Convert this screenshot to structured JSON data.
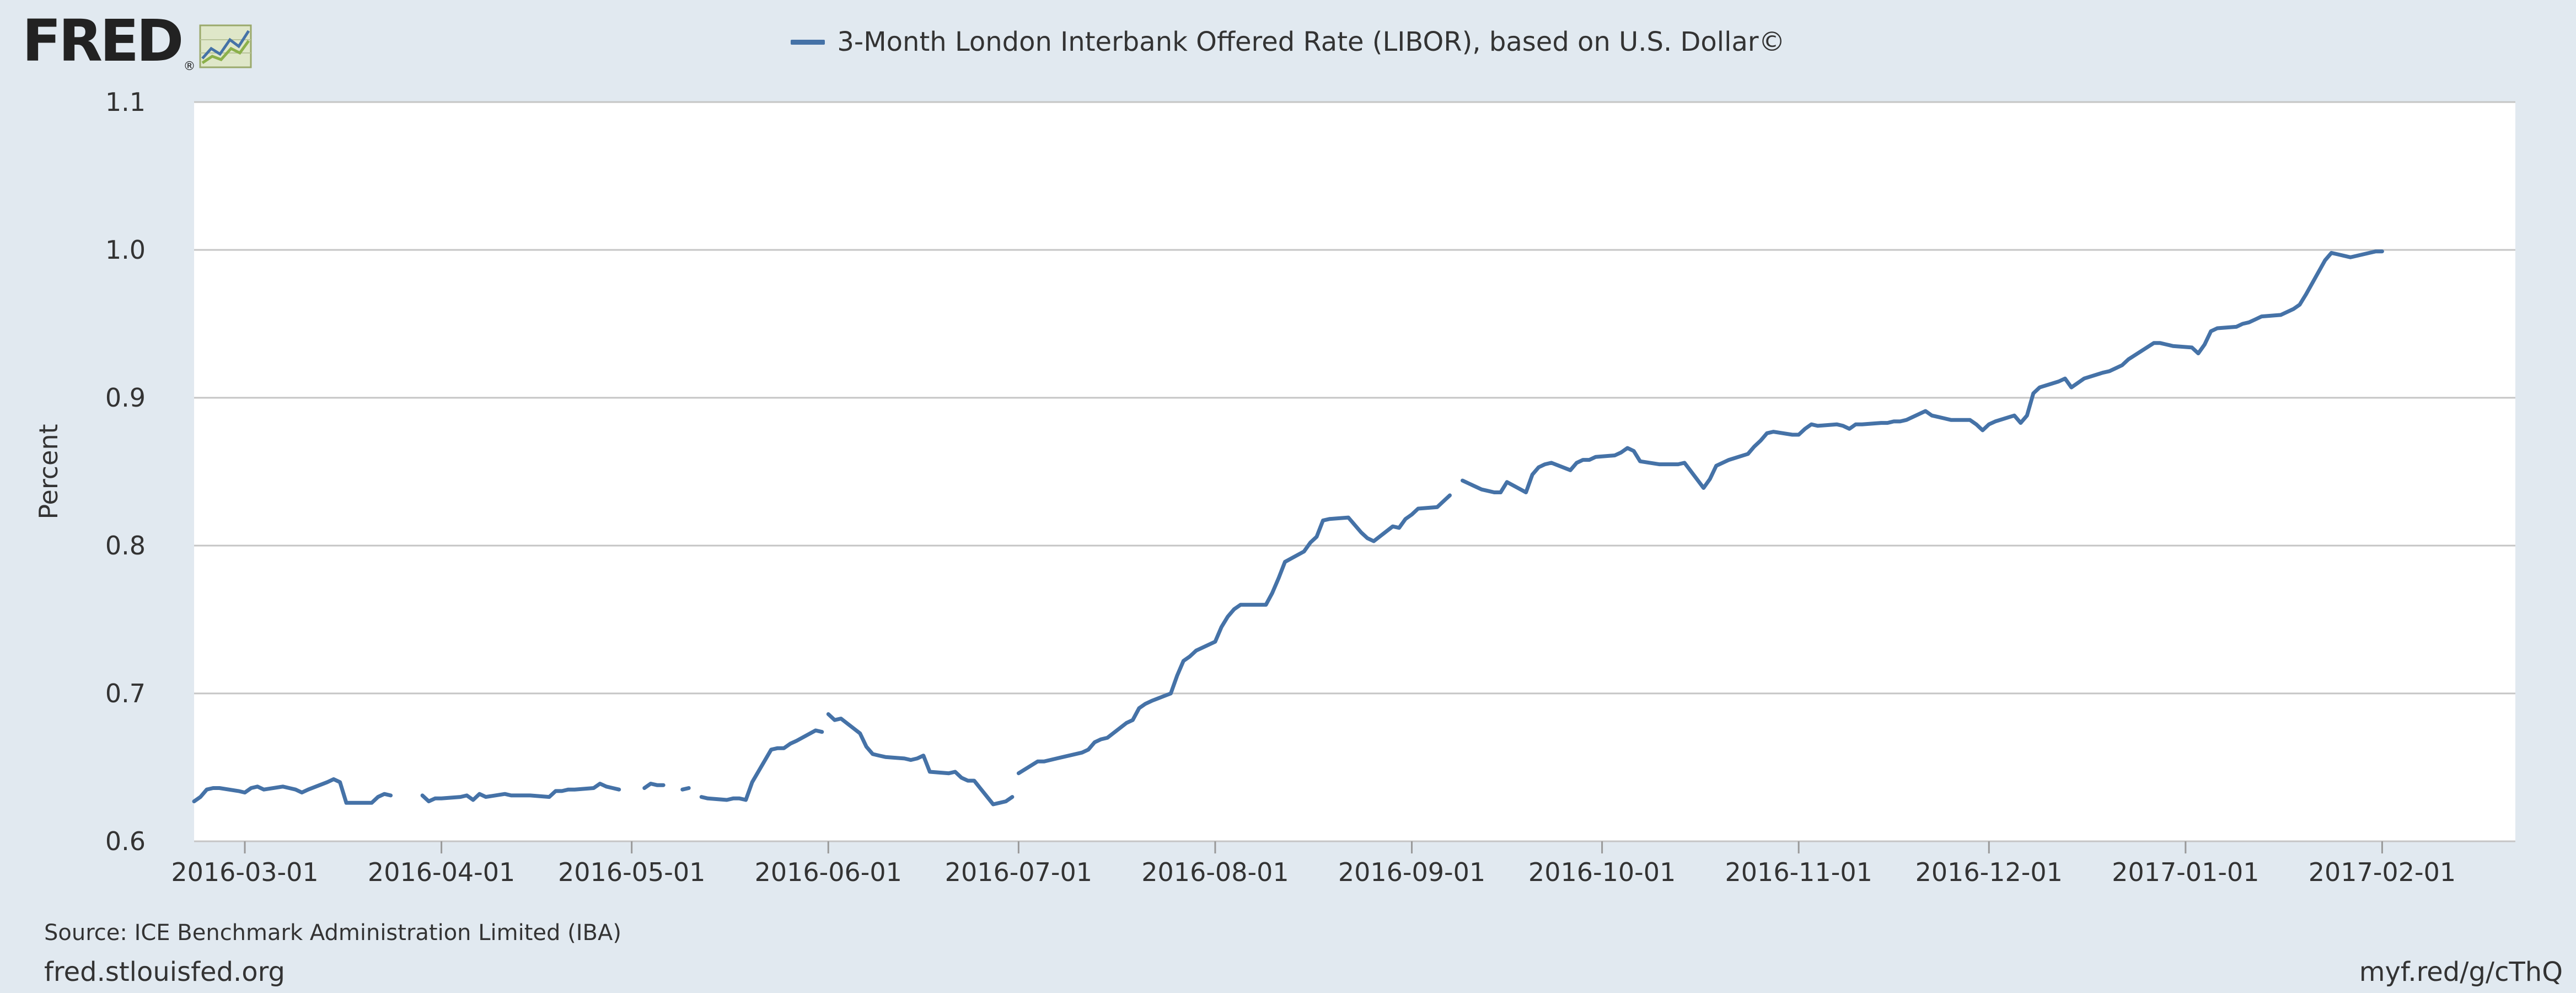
{
  "header": {
    "logo_text": "FRED",
    "logo_mark": "®",
    "logo_icon": "line-chart-icon"
  },
  "footer": {
    "source": "Source: ICE Benchmark Administration Limited (IBA)",
    "site": "fred.stlouisfed.org",
    "shortlink": "myf.red/g/cThQ"
  },
  "colors": {
    "background": "#e1e9f0",
    "plot_background": "#ffffff",
    "series": "#4572a7",
    "grid": "#c5c5c5"
  },
  "chart_data": {
    "type": "line",
    "title": "",
    "ylabel": "Percent",
    "xlabel": "",
    "xlim": [
      "2016-02-22",
      "2017-02-22"
    ],
    "ylim": [
      0.6,
      1.1
    ],
    "yticks": [
      "0.6",
      "0.7",
      "0.8",
      "0.9",
      "1.0",
      "1.1"
    ],
    "xticks": [
      "2016-03-01",
      "2016-04-01",
      "2016-05-01",
      "2016-06-01",
      "2016-07-01",
      "2016-08-01",
      "2016-09-01",
      "2016-10-01",
      "2016-11-01",
      "2016-12-01",
      "2017-01-01",
      "2017-02-01"
    ],
    "grid": "horizontal",
    "legend": "top-center",
    "series": [
      {
        "name": "3-Month London Interbank Offered Rate (LIBOR), based on U.S. Dollar©",
        "segments": [
          [
            [
              "2016-02-22",
              0.627
            ],
            [
              "2016-02-23",
              0.63
            ],
            [
              "2016-02-24",
              0.635
            ],
            [
              "2016-02-25",
              0.636
            ],
            [
              "2016-02-26",
              0.636
            ],
            [
              "2016-02-29",
              0.634
            ],
            [
              "2016-03-01",
              0.633
            ],
            [
              "2016-03-02",
              0.636
            ],
            [
              "2016-03-03",
              0.637
            ],
            [
              "2016-03-04",
              0.635
            ],
            [
              "2016-03-07",
              0.637
            ],
            [
              "2016-03-08",
              0.636
            ],
            [
              "2016-03-09",
              0.635
            ],
            [
              "2016-03-10",
              0.633
            ],
            [
              "2016-03-11",
              0.635
            ],
            [
              "2016-03-14",
              0.64
            ],
            [
              "2016-03-15",
              0.642
            ],
            [
              "2016-03-16",
              0.64
            ],
            [
              "2016-03-17",
              0.626
            ],
            [
              "2016-03-18",
              0.626
            ],
            [
              "2016-03-21",
              0.626
            ],
            [
              "2016-03-22",
              0.63
            ],
            [
              "2016-03-23",
              0.632
            ],
            [
              "2016-03-24",
              0.631
            ]
          ],
          [
            [
              "2016-03-29",
              0.631
            ],
            [
              "2016-03-30",
              0.627
            ],
            [
              "2016-03-31",
              0.629
            ],
            [
              "2016-04-01",
              0.629
            ],
            [
              "2016-04-04",
              0.63
            ],
            [
              "2016-04-05",
              0.631
            ],
            [
              "2016-04-06",
              0.628
            ],
            [
              "2016-04-07",
              0.632
            ],
            [
              "2016-04-08",
              0.63
            ],
            [
              "2016-04-11",
              0.632
            ],
            [
              "2016-04-12",
              0.631
            ],
            [
              "2016-04-13",
              0.631
            ],
            [
              "2016-04-14",
              0.631
            ],
            [
              "2016-04-15",
              0.631
            ],
            [
              "2016-04-18",
              0.63
            ],
            [
              "2016-04-19",
              0.634
            ],
            [
              "2016-04-20",
              0.634
            ],
            [
              "2016-04-21",
              0.635
            ],
            [
              "2016-04-22",
              0.635
            ],
            [
              "2016-04-25",
              0.636
            ],
            [
              "2016-04-26",
              0.639
            ],
            [
              "2016-04-27",
              0.637
            ],
            [
              "2016-04-28",
              0.636
            ],
            [
              "2016-04-29",
              0.635
            ]
          ],
          [
            [
              "2016-05-03",
              0.636
            ],
            [
              "2016-05-04",
              0.639
            ],
            [
              "2016-05-05",
              0.638
            ],
            [
              "2016-05-06",
              0.638
            ]
          ],
          [
            [
              "2016-05-09",
              0.635
            ],
            [
              "2016-05-10",
              0.636
            ]
          ],
          [
            [
              "2016-05-12",
              0.63
            ],
            [
              "2016-05-13",
              0.629
            ],
            [
              "2016-05-16",
              0.628
            ],
            [
              "2016-05-17",
              0.629
            ],
            [
              "2016-05-18",
              0.629
            ],
            [
              "2016-05-19",
              0.628
            ],
            [
              "2016-05-20",
              0.64
            ],
            [
              "2016-05-23",
              0.662
            ],
            [
              "2016-05-24",
              0.663
            ],
            [
              "2016-05-25",
              0.663
            ],
            [
              "2016-05-26",
              0.666
            ],
            [
              "2016-05-27",
              0.668
            ],
            [
              "2016-05-30",
              0.675
            ],
            [
              "2016-05-31",
              0.674
            ]
          ],
          [
            [
              "2016-06-01",
              0.686
            ],
            [
              "2016-06-02",
              0.682
            ],
            [
              "2016-06-03",
              0.683
            ],
            [
              "2016-06-06",
              0.673
            ],
            [
              "2016-06-07",
              0.664
            ],
            [
              "2016-06-08",
              0.659
            ],
            [
              "2016-06-09",
              0.658
            ],
            [
              "2016-06-10",
              0.657
            ],
            [
              "2016-06-13",
              0.656
            ],
            [
              "2016-06-14",
              0.655
            ],
            [
              "2016-06-15",
              0.656
            ],
            [
              "2016-06-16",
              0.658
            ],
            [
              "2016-06-17",
              0.647
            ],
            [
              "2016-06-20",
              0.646
            ],
            [
              "2016-06-21",
              0.647
            ],
            [
              "2016-06-22",
              0.643
            ],
            [
              "2016-06-23",
              0.641
            ],
            [
              "2016-06-24",
              0.641
            ],
            [
              "2016-06-27",
              0.625
            ],
            [
              "2016-06-28",
              0.626
            ],
            [
              "2016-06-29",
              0.627
            ],
            [
              "2016-06-30",
              0.63
            ]
          ],
          [
            [
              "2016-07-01",
              0.646
            ],
            [
              "2016-07-04",
              0.654
            ],
            [
              "2016-07-05",
              0.654
            ],
            [
              "2016-07-06",
              0.655
            ],
            [
              "2016-07-07",
              0.656
            ],
            [
              "2016-07-08",
              0.657
            ],
            [
              "2016-07-11",
              0.66
            ],
            [
              "2016-07-12",
              0.662
            ],
            [
              "2016-07-13",
              0.667
            ],
            [
              "2016-07-14",
              0.669
            ],
            [
              "2016-07-15",
              0.67
            ],
            [
              "2016-07-18",
              0.68
            ],
            [
              "2016-07-19",
              0.682
            ],
            [
              "2016-07-20",
              0.69
            ],
            [
              "2016-07-21",
              0.693
            ],
            [
              "2016-07-22",
              0.695
            ],
            [
              "2016-07-25",
              0.7
            ],
            [
              "2016-07-26",
              0.712
            ],
            [
              "2016-07-27",
              0.722
            ],
            [
              "2016-07-28",
              0.725
            ],
            [
              "2016-07-29",
              0.729
            ],
            [
              "2016-08-01",
              0.735
            ],
            [
              "2016-08-02",
              0.745
            ],
            [
              "2016-08-03",
              0.752
            ],
            [
              "2016-08-04",
              0.757
            ],
            [
              "2016-08-05",
              0.76
            ],
            [
              "2016-08-08",
              0.76
            ],
            [
              "2016-08-09",
              0.76
            ],
            [
              "2016-08-10",
              0.768
            ],
            [
              "2016-08-11",
              0.778
            ],
            [
              "2016-08-12",
              0.789
            ],
            [
              "2016-08-15",
              0.796
            ],
            [
              "2016-08-16",
              0.802
            ],
            [
              "2016-08-17",
              0.806
            ],
            [
              "2016-08-18",
              0.817
            ],
            [
              "2016-08-19",
              0.818
            ],
            [
              "2016-08-22",
              0.819
            ],
            [
              "2016-08-23",
              0.814
            ],
            [
              "2016-08-24",
              0.809
            ],
            [
              "2016-08-25",
              0.805
            ],
            [
              "2016-08-26",
              0.803
            ],
            [
              "2016-08-29",
              0.813
            ],
            [
              "2016-08-30",
              0.812
            ],
            [
              "2016-08-31",
              0.818
            ],
            [
              "2016-09-01",
              0.821
            ],
            [
              "2016-09-02",
              0.825
            ],
            [
              "2016-09-05",
              0.826
            ],
            [
              "2016-09-06",
              0.83
            ],
            [
              "2016-09-07",
              0.834
            ]
          ],
          [
            [
              "2016-09-09",
              0.844
            ],
            [
              "2016-09-12",
              0.838
            ],
            [
              "2016-09-13",
              0.837
            ],
            [
              "2016-09-14",
              0.836
            ],
            [
              "2016-09-15",
              0.836
            ],
            [
              "2016-09-16",
              0.843
            ],
            [
              "2016-09-19",
              0.836
            ],
            [
              "2016-09-20",
              0.848
            ],
            [
              "2016-09-21",
              0.853
            ],
            [
              "2016-09-22",
              0.855
            ],
            [
              "2016-09-23",
              0.856
            ],
            [
              "2016-09-26",
              0.851
            ],
            [
              "2016-09-27",
              0.856
            ],
            [
              "2016-09-28",
              0.858
            ],
            [
              "2016-09-29",
              0.858
            ],
            [
              "2016-09-30",
              0.86
            ],
            [
              "2016-10-03",
              0.861
            ],
            [
              "2016-10-04",
              0.863
            ],
            [
              "2016-10-05",
              0.866
            ],
            [
              "2016-10-06",
              0.864
            ],
            [
              "2016-10-07",
              0.857
            ],
            [
              "2016-10-10",
              0.855
            ],
            [
              "2016-10-11",
              0.855
            ],
            [
              "2016-10-12",
              0.855
            ],
            [
              "2016-10-13",
              0.855
            ],
            [
              "2016-10-14",
              0.856
            ],
            [
              "2016-10-17",
              0.839
            ],
            [
              "2016-10-18",
              0.845
            ],
            [
              "2016-10-19",
              0.854
            ],
            [
              "2016-10-20",
              0.856
            ],
            [
              "2016-10-21",
              0.858
            ],
            [
              "2016-10-24",
              0.862
            ],
            [
              "2016-10-25",
              0.867
            ],
            [
              "2016-10-26",
              0.871
            ],
            [
              "2016-10-27",
              0.876
            ],
            [
              "2016-10-28",
              0.877
            ],
            [
              "2016-10-31",
              0.875
            ],
            [
              "2016-11-01",
              0.875
            ],
            [
              "2016-11-02",
              0.879
            ],
            [
              "2016-11-03",
              0.882
            ],
            [
              "2016-11-04",
              0.881
            ],
            [
              "2016-11-07",
              0.882
            ],
            [
              "2016-11-08",
              0.881
            ],
            [
              "2016-11-09",
              0.879
            ],
            [
              "2016-11-10",
              0.882
            ],
            [
              "2016-11-11",
              0.882
            ],
            [
              "2016-11-14",
              0.883
            ],
            [
              "2016-11-15",
              0.883
            ],
            [
              "2016-11-16",
              0.884
            ],
            [
              "2016-11-17",
              0.884
            ],
            [
              "2016-11-18",
              0.885
            ],
            [
              "2016-11-21",
              0.891
            ],
            [
              "2016-11-22",
              0.888
            ],
            [
              "2016-11-23",
              0.887
            ],
            [
              "2016-11-24",
              0.886
            ],
            [
              "2016-11-25",
              0.885
            ],
            [
              "2016-11-28",
              0.885
            ],
            [
              "2016-11-29",
              0.882
            ],
            [
              "2016-11-30",
              0.878
            ],
            [
              "2016-12-01",
              0.882
            ],
            [
              "2016-12-02",
              0.884
            ],
            [
              "2016-12-05",
              0.888
            ],
            [
              "2016-12-06",
              0.883
            ],
            [
              "2016-12-07",
              0.888
            ],
            [
              "2016-12-08",
              0.903
            ],
            [
              "2016-12-09",
              0.907
            ],
            [
              "2016-12-12",
              0.911
            ],
            [
              "2016-12-13",
              0.913
            ],
            [
              "2016-12-14",
              0.907
            ],
            [
              "2016-12-15",
              0.91
            ],
            [
              "2016-12-16",
              0.913
            ],
            [
              "2016-12-19",
              0.917
            ],
            [
              "2016-12-20",
              0.918
            ],
            [
              "2016-12-21",
              0.92
            ],
            [
              "2016-12-22",
              0.922
            ],
            [
              "2016-12-23",
              0.926
            ],
            [
              "2016-12-27",
              0.937
            ],
            [
              "2016-12-28",
              0.937
            ],
            [
              "2016-12-29",
              0.936
            ],
            [
              "2016-12-30",
              0.935
            ],
            [
              "2017-01-02",
              0.934
            ],
            [
              "2017-01-03",
              0.93
            ],
            [
              "2017-01-04",
              0.936
            ],
            [
              "2017-01-05",
              0.945
            ],
            [
              "2017-01-06",
              0.947
            ],
            [
              "2017-01-09",
              0.948
            ],
            [
              "2017-01-10",
              0.95
            ],
            [
              "2017-01-11",
              0.951
            ],
            [
              "2017-01-12",
              0.953
            ],
            [
              "2017-01-13",
              0.955
            ],
            [
              "2017-01-16",
              0.956
            ],
            [
              "2017-01-17",
              0.958
            ],
            [
              "2017-01-18",
              0.96
            ],
            [
              "2017-01-19",
              0.963
            ],
            [
              "2017-01-20",
              0.97
            ],
            [
              "2017-01-23",
              0.993
            ],
            [
              "2017-01-24",
              0.998
            ],
            [
              "2017-01-25",
              0.997
            ],
            [
              "2017-01-26",
              0.996
            ],
            [
              "2017-01-27",
              0.995
            ],
            [
              "2017-01-30",
              0.998
            ],
            [
              "2017-01-31",
              0.999
            ],
            [
              "2017-02-01",
              0.999
            ]
          ]
        ]
      }
    ]
  }
}
